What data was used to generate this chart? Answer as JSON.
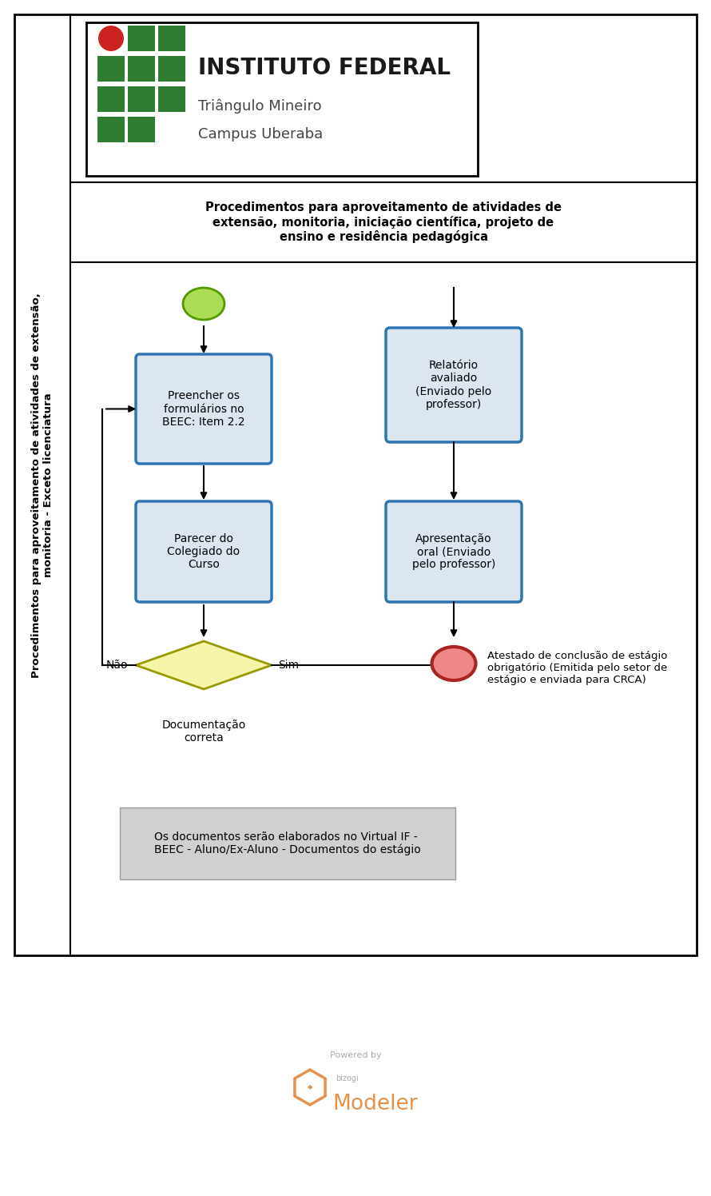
{
  "fig_width": 8.9,
  "fig_height": 14.96,
  "bg_color": "#ffffff",
  "sidebar_text_line1": "Procedimentos para aproveitamento de atividades de extensão,",
  "sidebar_text_line2": "monitoria - Exceto licenciatura",
  "header_title": "INSTITUTO FEDERAL",
  "header_sub1": "Triângulo Mineiro",
  "header_sub2": "Campus Uberaba",
  "procedure_text": "Procedimentos para aproveitamento de atividades de\nextensão, monitoria, iniciação científica, projeto de\nensino e residência pedagógica",
  "box1_text": "Preencher os\nformulários no\nBEEC: Item 2.2",
  "box2_text": "Parecer do\nColegiado do\nCurso",
  "box3_text": "Relatório\navaliado\n(Enviado pelo\nprofessor)",
  "box4_text": "Apresentação\noral (Enviado\npelo professor)",
  "diamond_text": "Documentação\ncorreta",
  "nao_text": "Não",
  "sim_text": "Sim",
  "end_text": "Atestado de conclusão de estágio\nobrigatório (Emitida pelo setor de\nestágio e enviada para CRCA)",
  "note_text": "Os documentos serão elaborados no Virtual IF -\nBEEC - Aluno/Ex-Aluno - Documentos do estágio",
  "powered_text": "Powered by",
  "modeler_text": "Modeler",
  "bizogi_text": "bizogi",
  "box_fill": "#dce6f1",
  "box_border": "#2e75b6",
  "diamond_fill": "#f5f5aa",
  "diamond_border": "#999900",
  "start_circle_fill": "#aadd55",
  "start_circle_border": "#559900",
  "end_circle_fill": "#ee8888",
  "end_circle_border": "#aa2222",
  "note_fill": "#d0d0d0",
  "note_border": "#999999",
  "arrow_color": "#000000",
  "modeler_color": "#e8904a",
  "powered_color": "#aaaaaa",
  "bizogi_color": "#aaaaaa",
  "logo_green": "#2e7d32",
  "logo_red": "#cc2222"
}
